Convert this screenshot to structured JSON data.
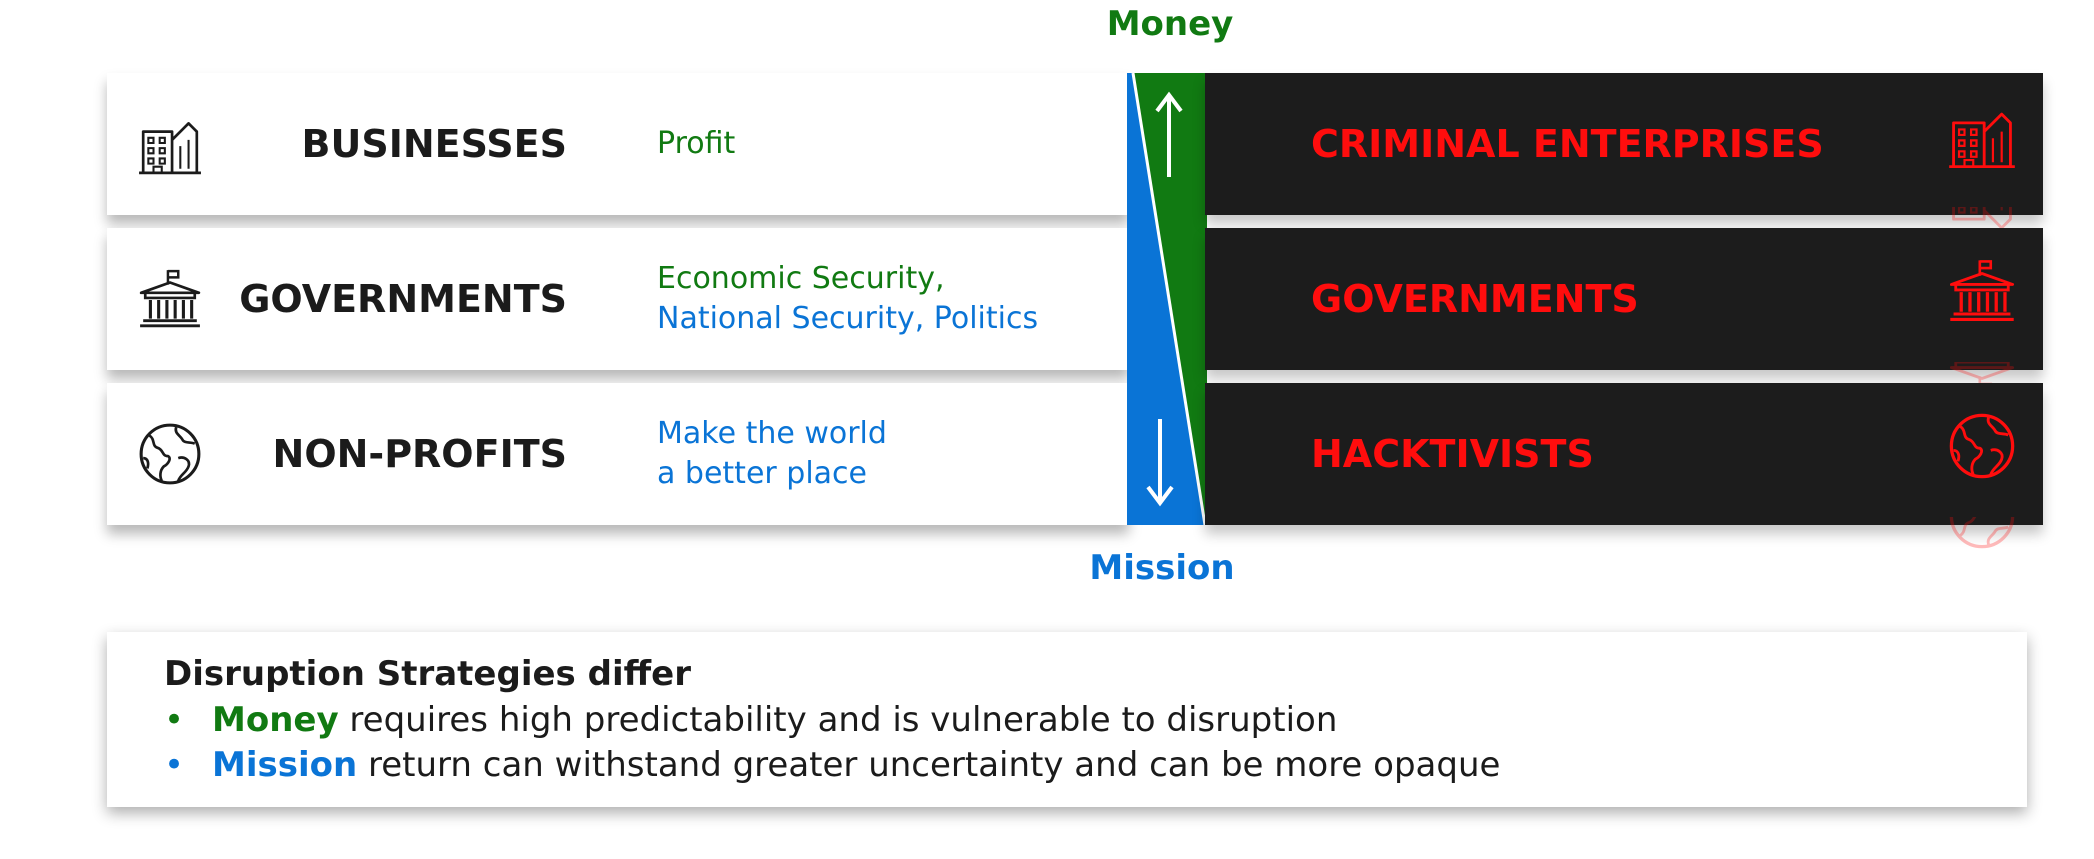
{
  "axis": {
    "top_label": "Money",
    "bottom_label": "Mission"
  },
  "colors": {
    "money_green": "#117a12",
    "mission_blue": "#0a74d6",
    "adversary_red": "#ff0d0d",
    "dark_panel": "#1c1c1c"
  },
  "legitimate": [
    {
      "name": "BUSINESSES",
      "icon": "building-icon",
      "desc_lines": [
        {
          "text": "Profit",
          "color": "green"
        }
      ]
    },
    {
      "name": "GOVERNMENTS",
      "icon": "government-building-icon",
      "desc_lines": [
        {
          "text": "Economic Security,",
          "color": "green"
        },
        {
          "text": "National Security, Politics",
          "color": "blue"
        }
      ]
    },
    {
      "name": "NON-PROFITS",
      "icon": "globe-icon",
      "desc_lines": [
        {
          "text": "Make the world",
          "color": "blue"
        },
        {
          "text": "a better place",
          "color": "blue"
        }
      ]
    }
  ],
  "adversaries": [
    {
      "name": "CRIMINAL ENTERPRISES",
      "icon": "building-icon"
    },
    {
      "name": "GOVERNMENTS",
      "icon": "government-building-icon"
    },
    {
      "name": "HACKTIVISTS",
      "icon": "globe-icon"
    }
  ],
  "strategies": {
    "title": "Disruption Strategies differ",
    "bullets": [
      {
        "bullet": "•",
        "key": "Money",
        "rest": " requires high predictability and is vulnerable to disruption",
        "color": "green"
      },
      {
        "bullet": "•",
        "key": "Mission",
        "rest": " return can withstand greater uncertainty and can be more opaque",
        "color": "blue"
      }
    ]
  }
}
